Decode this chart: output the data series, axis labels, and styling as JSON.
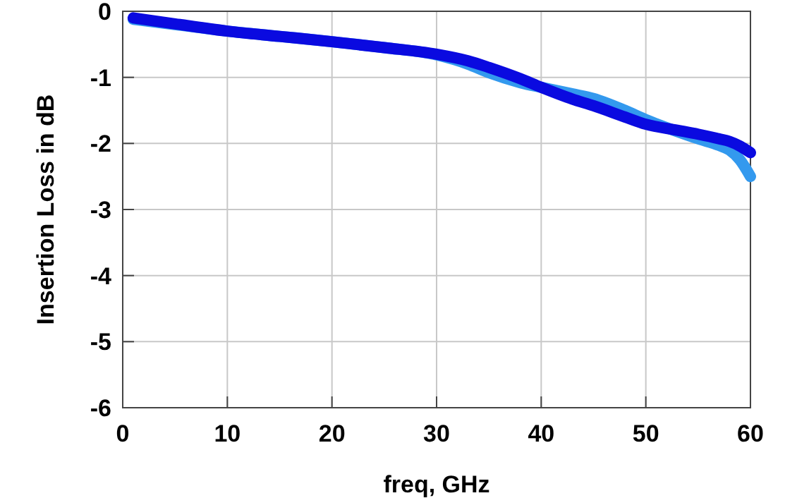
{
  "chart_data": {
    "type": "line",
    "xlabel": "freq, GHz",
    "ylabel": "Insertion Loss in dB",
    "xlim": [
      0,
      60
    ],
    "ylim": [
      -6,
      0
    ],
    "xticks": [
      0,
      10,
      20,
      30,
      40,
      50,
      60
    ],
    "yticks": [
      -6,
      -5,
      -4,
      -3,
      -2,
      -1,
      0
    ],
    "grid": true,
    "series": [
      {
        "color": "#3399ee",
        "x": [
          1,
          5,
          10,
          15,
          20,
          25,
          30,
          33,
          35,
          38,
          40,
          43,
          45,
          48,
          50,
          53,
          55,
          57,
          58,
          59,
          60
        ],
        "values": [
          -0.12,
          -0.2,
          -0.3,
          -0.38,
          -0.46,
          -0.55,
          -0.66,
          -0.8,
          -0.93,
          -1.08,
          -1.15,
          -1.25,
          -1.32,
          -1.5,
          -1.64,
          -1.82,
          -1.93,
          -2.03,
          -2.1,
          -2.25,
          -2.5
        ]
      },
      {
        "color": "#0a0ae0",
        "x": [
          1,
          5,
          10,
          15,
          20,
          25,
          30,
          33,
          35,
          38,
          40,
          43,
          45,
          48,
          50,
          53,
          55,
          57,
          58,
          59,
          60
        ],
        "values": [
          -0.1,
          -0.19,
          -0.3,
          -0.38,
          -0.46,
          -0.55,
          -0.65,
          -0.75,
          -0.85,
          -1.02,
          -1.15,
          -1.33,
          -1.43,
          -1.6,
          -1.71,
          -1.8,
          -1.86,
          -1.93,
          -1.97,
          -2.04,
          -2.14
        ]
      }
    ]
  }
}
